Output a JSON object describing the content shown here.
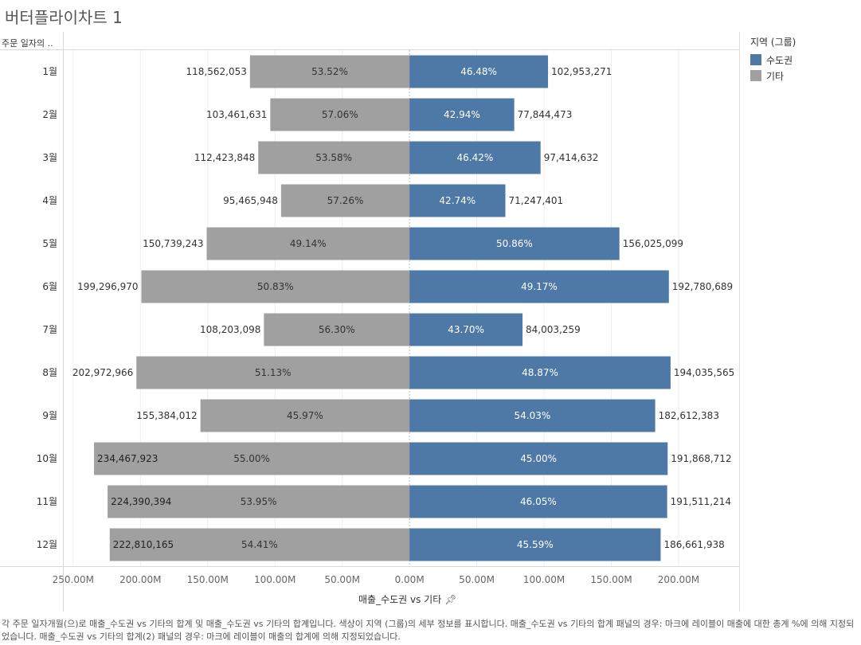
{
  "title": "버터플라이차트 1",
  "row_header": "주문 일자의 ..",
  "legend": {
    "title": "지역 (그룹)",
    "items": [
      {
        "label": "수도권",
        "color": "#4e79a7"
      },
      {
        "label": "기타",
        "color": "#a0a0a0"
      }
    ]
  },
  "x_axis_title": "매출_수도권 vs 기타",
  "caption": "각 주문 일자개월(으)로 매출_수도권 vs 기타의 합계 및 매출_수도권 vs 기타의 합계입니다. 색상이 지역 (그룹)의 세부 정보를 표시합니다. 매출_수도권 vs 기타의 합계 패널의 경우: 마크에 레이블이 매출에 대한 총계 %에 의해 지정되었습니다. 매출_수도권 vs 기타의 합계(2) 패널의 경우: 마크에 레이블이 매출의 합계에 의해 지정되었습니다.",
  "chart_data": {
    "type": "bar",
    "orientation": "horizontal-butterfly",
    "categories": [
      "1월",
      "2월",
      "3월",
      "4월",
      "5월",
      "6월",
      "7월",
      "8월",
      "9월",
      "10월",
      "11월",
      "12월"
    ],
    "series": [
      {
        "name": "기타",
        "color": "#a0a0a0",
        "side": "left",
        "values": [
          118562053,
          103461631,
          112423848,
          95465948,
          150739243,
          199296970,
          108203098,
          202972966,
          155384012,
          234467923,
          224390394,
          222810165
        ],
        "value_labels": [
          "118,562,053",
          "103,461,631",
          "112,423,848",
          "95,465,948",
          "150,739,243",
          "199,296,970",
          "108,203,098",
          "202,972,966",
          "155,384,012",
          "234,467,923",
          "224,390,394",
          "222,810,165"
        ],
        "percent_labels": [
          "53.52%",
          "57.06%",
          "53.58%",
          "57.26%",
          "49.14%",
          "50.83%",
          "56.30%",
          "51.13%",
          "45.97%",
          "55.00%",
          "53.95%",
          "54.41%"
        ]
      },
      {
        "name": "수도권",
        "color": "#4e79a7",
        "side": "right",
        "values": [
          102953271,
          77844473,
          97414632,
          71247401,
          156025099,
          192780689,
          84003259,
          194035565,
          182612383,
          191868712,
          191511214,
          186661938
        ],
        "value_labels": [
          "102,953,271",
          "77,844,473",
          "97,414,632",
          "71,247,401",
          "156,025,099",
          "192,780,689",
          "84,003,259",
          "194,035,565",
          "182,612,383",
          "191,868,712",
          "191,511,214",
          "186,661,938"
        ],
        "percent_labels": [
          "46.48%",
          "42.94%",
          "46.42%",
          "42.74%",
          "50.86%",
          "49.17%",
          "43.70%",
          "48.87%",
          "54.03%",
          "45.00%",
          "46.05%",
          "45.59%"
        ]
      }
    ],
    "x_ticks": [
      {
        "value": -250000000,
        "label": "250.00M"
      },
      {
        "value": -200000000,
        "label": "200.00M"
      },
      {
        "value": -150000000,
        "label": "150.00M"
      },
      {
        "value": -100000000,
        "label": "100.00M"
      },
      {
        "value": -50000000,
        "label": "50.00M"
      },
      {
        "value": 0,
        "label": "0.00M"
      },
      {
        "value": 50000000,
        "label": "50.00M"
      },
      {
        "value": 100000000,
        "label": "100.00M"
      },
      {
        "value": 150000000,
        "label": "150.00M"
      },
      {
        "value": 200000000,
        "label": "200.00M"
      }
    ],
    "xlim": [
      -257000000,
      245000000
    ],
    "grid": true,
    "legend_position": "right"
  }
}
